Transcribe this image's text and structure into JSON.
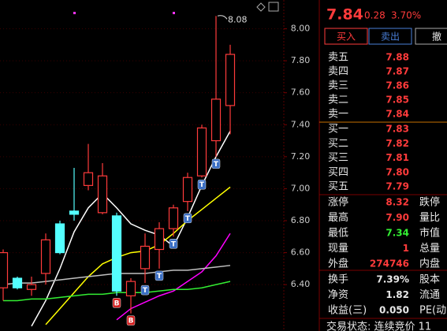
{
  "chart_data": {
    "type": "candlestick",
    "ylim": [
      6.11,
      8.18
    ],
    "yticks": [
      {
        "value": 6.4,
        "label": "6.40"
      },
      {
        "value": 6.6,
        "label": "6.60"
      },
      {
        "value": 6.8,
        "label": "6.80"
      },
      {
        "value": 7.0,
        "label": "7.00"
      },
      {
        "value": 7.2,
        "label": "7.20"
      },
      {
        "value": 7.4,
        "label": "7.40"
      },
      {
        "value": 7.6,
        "label": "7.60"
      },
      {
        "value": 7.8,
        "label": "7.80"
      },
      {
        "value": 8.0,
        "label": "8.00"
      }
    ],
    "grid": true,
    "up_color": "#ff3b3b",
    "down_color": "#54ffff",
    "candles": [
      {
        "open": 6.38,
        "close": 6.6,
        "high": 6.62,
        "low": 6.3
      },
      {
        "open": 6.44,
        "close": 6.38,
        "high": 6.45,
        "low": 6.37
      },
      {
        "open": 6.37,
        "close": 6.4,
        "high": 6.45,
        "low": 6.33
      },
      {
        "open": 6.47,
        "close": 6.68,
        "high": 6.72,
        "low": 6.4
      },
      {
        "open": 6.78,
        "close": 6.6,
        "high": 6.8,
        "low": 6.59
      },
      {
        "open": 6.86,
        "close": 6.84,
        "high": 7.13,
        "low": 6.8
      },
      {
        "open": 7.02,
        "close": 7.1,
        "high": 7.28,
        "low": 6.99
      },
      {
        "open": 6.85,
        "close": 7.08,
        "high": 7.16,
        "low": 6.84
      },
      {
        "open": 6.83,
        "close": 6.36,
        "high": 6.85,
        "low": 6.33,
        "signal": "B"
      },
      {
        "open": 6.33,
        "close": 6.42,
        "high": 6.44,
        "low": 6.22,
        "signal": "B"
      },
      {
        "open": 6.5,
        "close": 6.64,
        "high": 6.72,
        "low": 6.41,
        "signal": "T"
      },
      {
        "open": 6.62,
        "close": 6.75,
        "high": 6.79,
        "low": 6.5,
        "signal": "T"
      },
      {
        "open": 6.75,
        "close": 6.88,
        "high": 6.9,
        "low": 6.7,
        "signal": "T"
      },
      {
        "open": 6.92,
        "close": 7.07,
        "high": 7.1,
        "low": 6.86,
        "signal": "T"
      },
      {
        "open": 7.08,
        "close": 7.38,
        "high": 7.4,
        "low": 7.07,
        "signal": "T"
      },
      {
        "open": 7.3,
        "close": 7.56,
        "high": 8.08,
        "low": 7.2,
        "signal": "T"
      },
      {
        "open": 7.52,
        "close": 7.84,
        "high": 7.9,
        "low": 7.34
      }
    ],
    "annotation": "8.08",
    "lines": [
      {
        "color": "#ffffff",
        "values": [
          null,
          null,
          6.14,
          6.3,
          6.5,
          6.73,
          6.88,
          6.97,
          6.88,
          6.78,
          6.74,
          6.71,
          6.64,
          6.82,
          7.02,
          7.2,
          7.36
        ]
      },
      {
        "color": "#ffff00",
        "values": [
          null,
          null,
          null,
          6.15,
          6.25,
          6.35,
          6.45,
          6.53,
          6.57,
          6.6,
          6.61,
          6.65,
          6.72,
          6.8,
          6.87,
          6.94,
          7.01
        ]
      },
      {
        "color": "#ff00ff",
        "values": [
          null,
          null,
          null,
          null,
          null,
          null,
          null,
          null,
          6.18,
          6.25,
          6.29,
          6.33,
          6.36,
          6.42,
          6.48,
          6.58,
          6.72
        ]
      },
      {
        "color": "#c0c0c0",
        "values": [
          6.4,
          6.41,
          6.41,
          6.42,
          6.43,
          6.44,
          6.45,
          6.46,
          6.47,
          6.47,
          6.47,
          6.48,
          6.49,
          6.49,
          6.5,
          6.51,
          6.52
        ]
      },
      {
        "color": "#33ee33",
        "values": [
          6.3,
          6.3,
          6.31,
          6.31,
          6.32,
          6.33,
          6.34,
          6.34,
          6.35,
          6.35,
          6.35,
          6.36,
          6.37,
          6.37,
          6.38,
          6.4,
          6.42
        ]
      }
    ]
  },
  "panel": {
    "price": "7.84",
    "change": "0.28",
    "percent": "3.70%",
    "buttons": [
      "买入",
      "卖出",
      "撤"
    ],
    "asks": [
      [
        "卖五",
        "7.88"
      ],
      [
        "卖四",
        "7.87"
      ],
      [
        "卖三",
        "7.86"
      ],
      [
        "卖二",
        "7.85"
      ],
      [
        "卖一",
        "7.84"
      ]
    ],
    "bids": [
      [
        "买一",
        "7.83"
      ],
      [
        "买二",
        "7.82"
      ],
      [
        "买三",
        "7.81"
      ],
      [
        "买四",
        "7.80"
      ],
      [
        "买五",
        "7.79"
      ]
    ],
    "stats": [
      [
        "涨停",
        "8.32",
        "跌停"
      ],
      [
        "最高",
        "7.90",
        "量比"
      ],
      [
        "最低",
        "7.34",
        "市值"
      ],
      [
        "现量",
        "1",
        "总量"
      ],
      [
        "外盘",
        "274746",
        "内盘"
      ]
    ],
    "stats2": [
      [
        "换手",
        "7.39%",
        "股本"
      ],
      [
        "净资",
        "1.82",
        "流通"
      ],
      [
        "收益(三)",
        "0.050",
        "PE(动"
      ]
    ],
    "status": "交易状态: 连续竞价 11"
  }
}
